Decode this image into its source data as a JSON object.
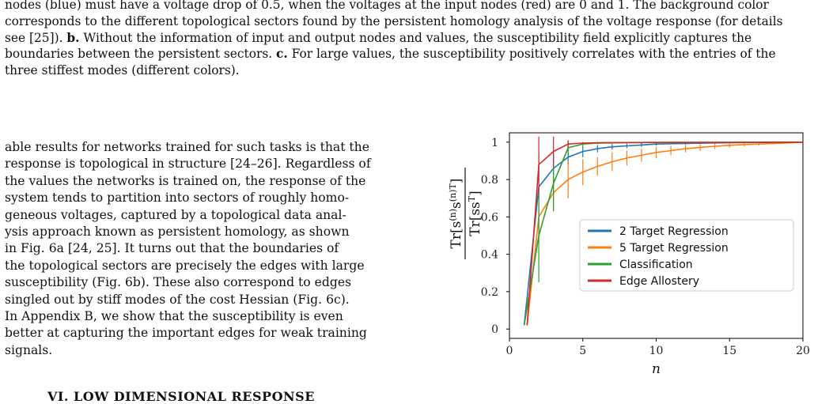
{
  "caption": {
    "line1": "nodes (blue) must have a voltage drop of 0.5, when the voltages at the input nodes (red) are 0 and 1. The background color",
    "line2": "corresponds to the different topological sectors found by the persistent homology analysis of the voltage response (for details",
    "line3_pre": "see [25]). ",
    "line3_b": "b.",
    "line3_post": " Without the information of input and output nodes and values, the susceptibility field explicitly captures the",
    "line4_pre": "boundaries between the persistent sectors. ",
    "line4_c": "c.",
    "line4_post": " For large values, the susceptibility positively correlates with the entries of the",
    "line5": "three stiffest modes (different colors)."
  },
  "body": {
    "lines": [
      "able results for networks trained for such tasks is that the",
      "response is topological in structure [24–26]. Regardless of",
      "the values the networks is trained on, the response of the",
      "system tends to partition into sectors of roughly homo-",
      "geneous voltages, captured by a topological data anal-",
      "ysis approach known as persistent homology, as shown",
      "in Fig. 6a [24, 25]. It turns out that the boundaries of",
      "the topological sectors are precisely the edges with large",
      "susceptibility (Fig. 6b). These also correspond to edges",
      "singled out by stiff modes of the cost Hessian (Fig. 6c).",
      "In Appendix B, we show that the susceptibility is even",
      "better at capturing the important edges for weak training",
      "signals."
    ]
  },
  "section_heading": "VI. LOW DIMENSIONAL RESPONSE",
  "chart_data": {
    "type": "line",
    "xlabel": "n",
    "ylabel": "Tr[s^(n) s^(n)T] / Tr[ss^T]",
    "xlim": [
      0,
      20
    ],
    "ylim": [
      -0.05,
      1.05
    ],
    "xticks": [
      "0",
      "5",
      "10",
      "15",
      "20"
    ],
    "yticks": [
      "0",
      "0.2",
      "0.4",
      "0.6",
      "0.8",
      "1"
    ],
    "legend_position": "center-right",
    "series": [
      {
        "name": "2 Target Regression",
        "color": "#1f77b4",
        "x": [
          1,
          2,
          3,
          4,
          5,
          6,
          7,
          8,
          9,
          10,
          12,
          14,
          16,
          18,
          20
        ],
        "y": [
          0.02,
          0.76,
          0.86,
          0.92,
          0.95,
          0.965,
          0.975,
          0.98,
          0.985,
          0.99,
          0.993,
          0.996,
          0.998,
          0.999,
          1.0
        ],
        "err": [
          0,
          0.18,
          0.08,
          0.04,
          0.03,
          0.02,
          0.015,
          0.012,
          0.01,
          0.008,
          0.006,
          0.004,
          0.003,
          0.002,
          0
        ]
      },
      {
        "name": "5 Target Regression",
        "color": "#ff7f0e",
        "x": [
          1.2,
          2,
          3,
          4,
          5,
          6,
          7,
          8,
          9,
          10,
          11,
          12,
          13,
          14,
          15,
          16,
          17,
          18,
          19,
          20
        ],
        "y": [
          0.02,
          0.6,
          0.73,
          0.8,
          0.84,
          0.87,
          0.895,
          0.915,
          0.93,
          0.945,
          0.955,
          0.965,
          0.972,
          0.978,
          0.983,
          0.987,
          0.99,
          0.993,
          0.996,
          1.0
        ],
        "err": [
          0,
          0.1,
          0.1,
          0.1,
          0.07,
          0.05,
          0.05,
          0.04,
          0.035,
          0.03,
          0.025,
          0.02,
          0.018,
          0.015,
          0.012,
          0.01,
          0.008,
          0.006,
          0.004,
          0
        ]
      },
      {
        "name": "Classification",
        "color": "#2ca02c",
        "x": [
          1,
          2,
          3,
          4,
          5,
          6,
          8,
          10,
          15,
          20
        ],
        "y": [
          0.02,
          0.5,
          0.78,
          0.97,
          0.99,
          0.995,
          0.997,
          0.998,
          0.999,
          1.0
        ],
        "err": [
          0,
          0.25,
          0.15,
          0.04,
          0.01,
          0.005,
          0.003,
          0.002,
          0.001,
          0
        ]
      },
      {
        "name": "Edge Allostery",
        "color": "#d62728",
        "x": [
          1.2,
          2,
          3,
          4,
          5,
          6,
          8,
          10,
          15,
          20
        ],
        "y": [
          0.02,
          0.88,
          0.95,
          0.99,
          0.995,
          0.997,
          0.998,
          0.999,
          0.999,
          1.0
        ],
        "err": [
          0,
          0.15,
          0.08,
          0.02,
          0.005,
          0.003,
          0.002,
          0.001,
          0.001,
          0
        ]
      }
    ]
  }
}
